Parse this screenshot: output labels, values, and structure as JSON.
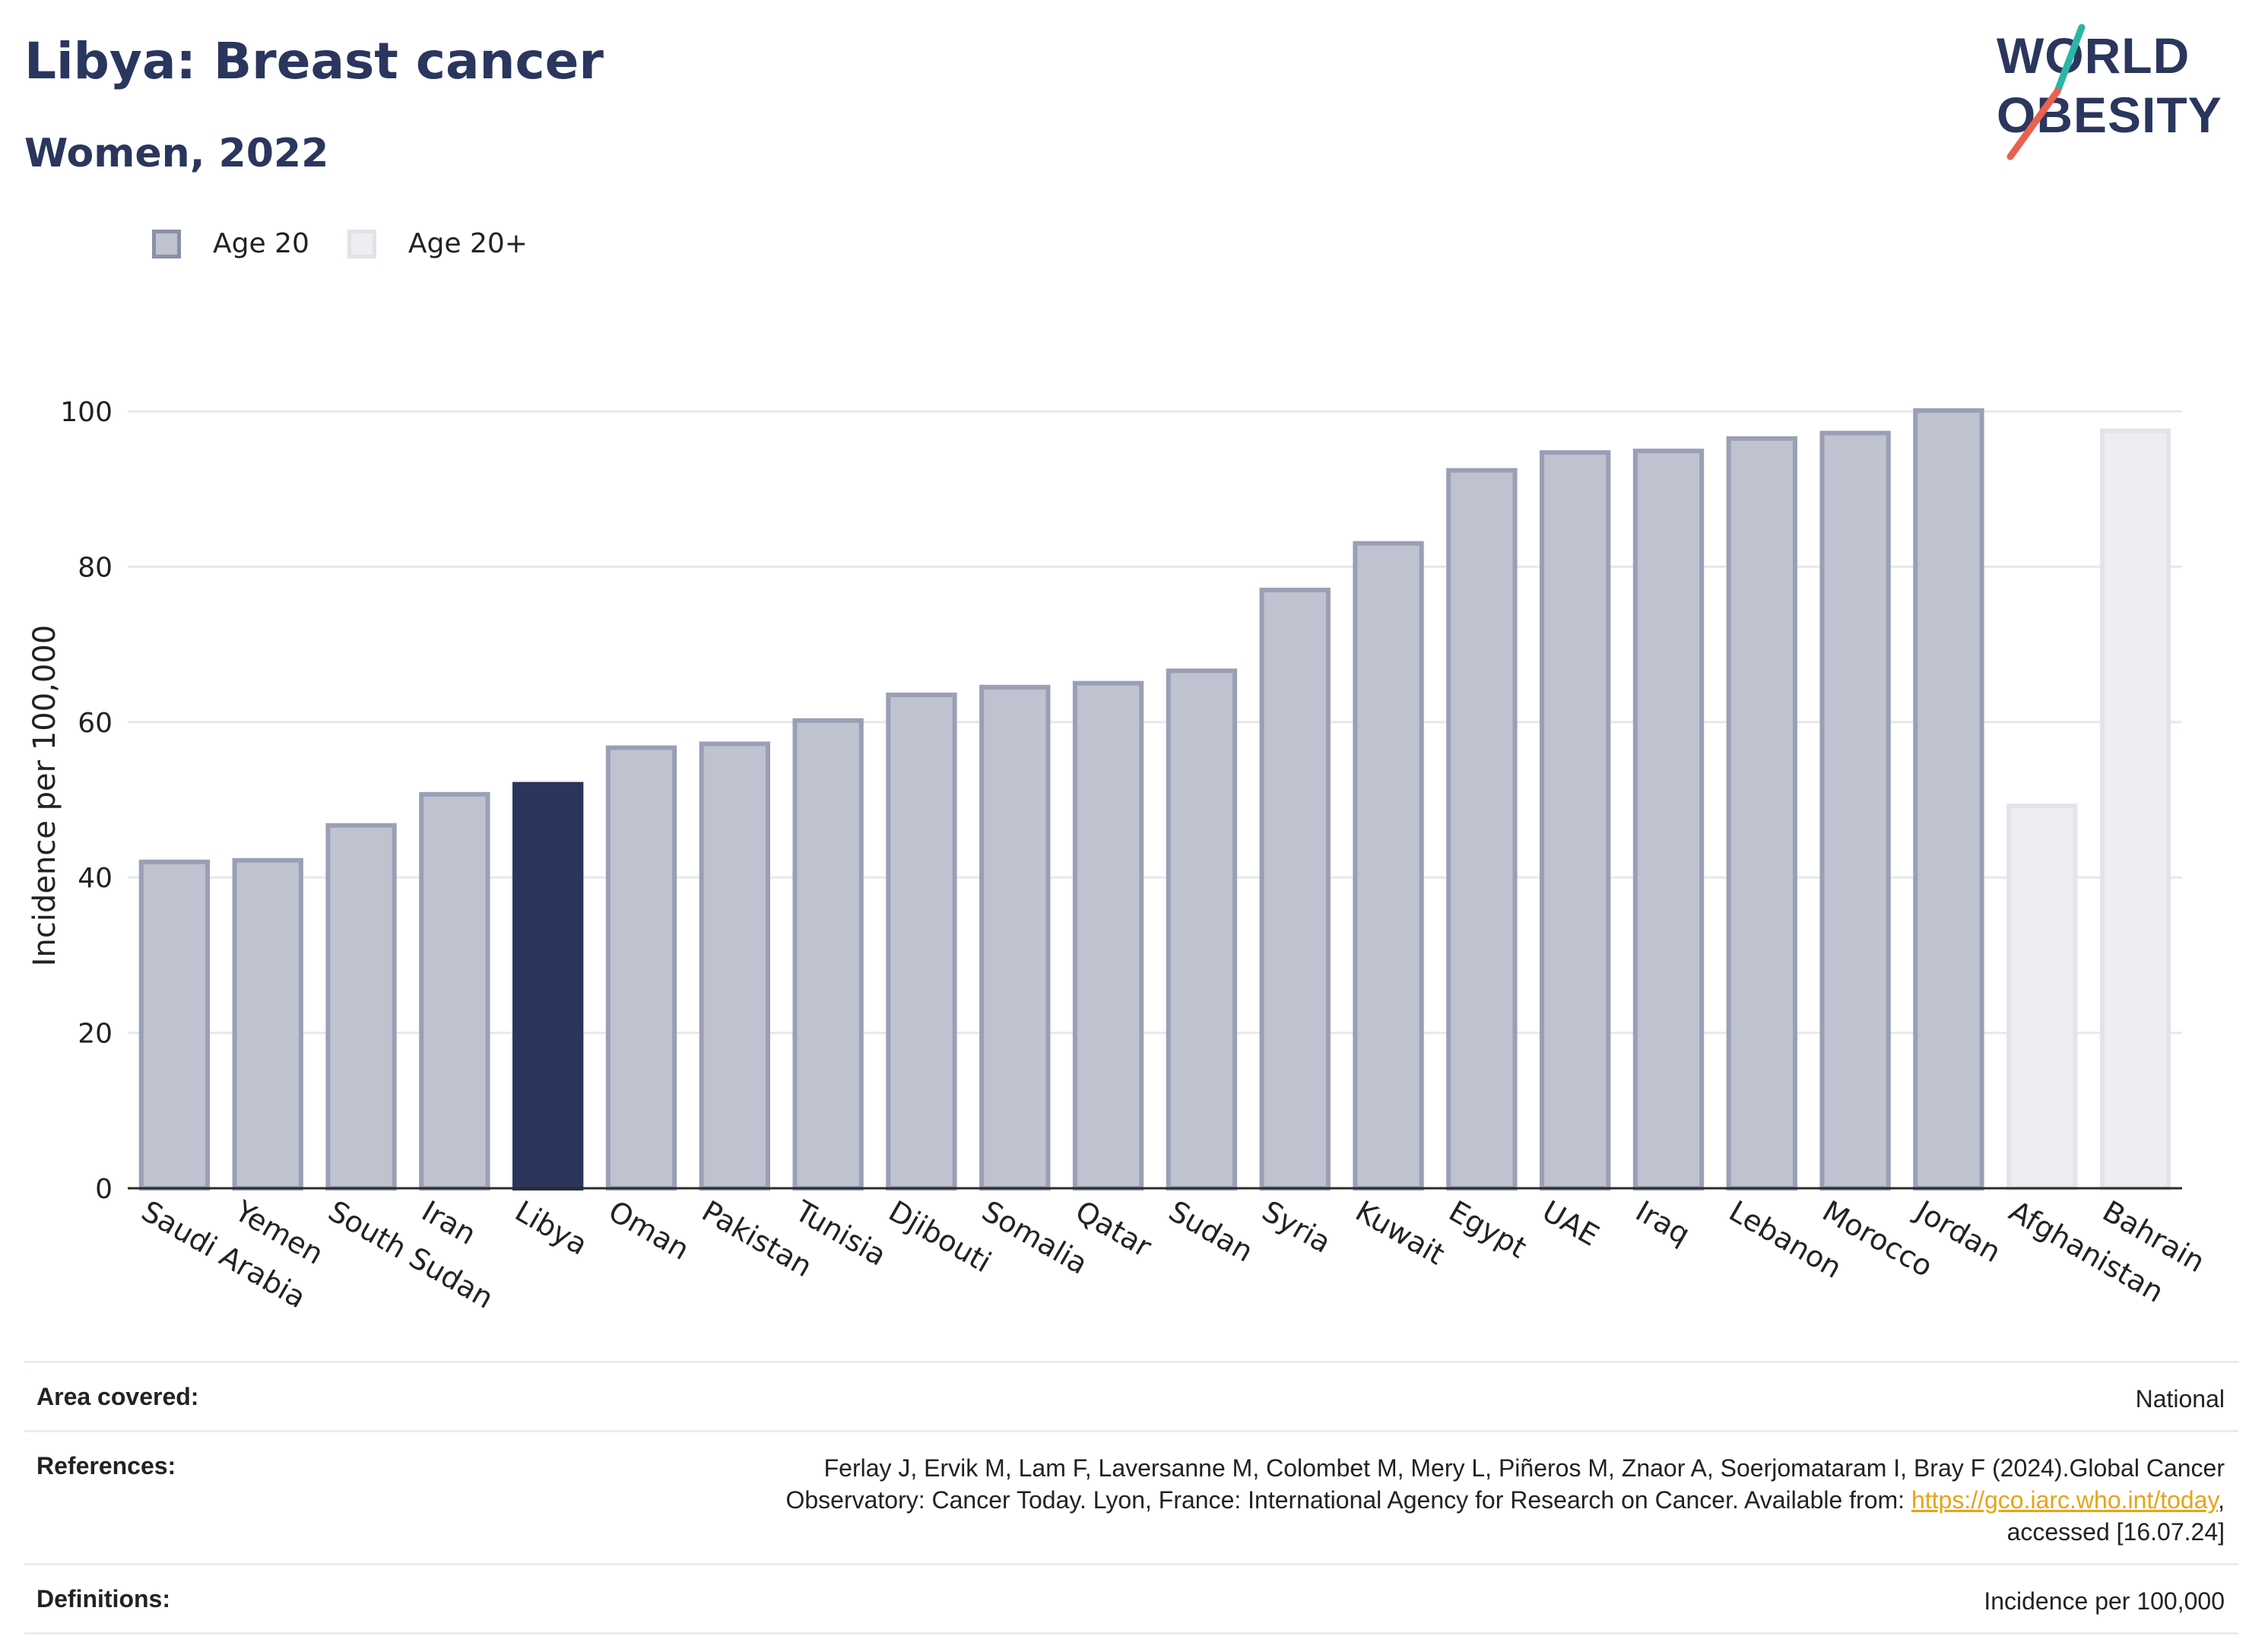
{
  "header": {
    "title": "Libya: Breast cancer",
    "subtitle": "Women, 2022"
  },
  "logo": {
    "line1": "WORLD",
    "line2": "OBESITY",
    "slash_colors": [
      "#2bb5a8",
      "#e8624f"
    ],
    "text_color": "#2b365e"
  },
  "legend": {
    "items": [
      {
        "label": "Age 20",
        "fill": "#bfc2cf",
        "stroke": "#8a90a8"
      },
      {
        "label": "Age 20+",
        "fill": "#eceef2",
        "stroke": "#e0e2e8"
      }
    ]
  },
  "chart_data": {
    "type": "bar",
    "ylabel": "Incidence per 100,000",
    "ylim": [
      0,
      105
    ],
    "yticks": [
      0,
      20,
      40,
      60,
      80,
      100
    ],
    "grid": true,
    "categories": [
      "Saudi Arabia",
      "Yemen",
      "South Sudan",
      "Iran",
      "Libya",
      "Oman",
      "Pakistan",
      "Tunisia",
      "Djibouti",
      "Somalia",
      "Qatar",
      "Sudan",
      "Syria",
      "Kuwait",
      "Egypt",
      "UAE",
      "Iraq",
      "Lebanon",
      "Morocco",
      "Jordan",
      "Afghanistan",
      "Bahrain"
    ],
    "values": [
      42.3,
      42.5,
      47.0,
      51.0,
      52.3,
      57.0,
      57.5,
      60.5,
      63.8,
      64.8,
      65.3,
      66.9,
      77.3,
      83.3,
      92.7,
      95.0,
      95.2,
      96.8,
      97.5,
      100.4,
      49.5,
      97.8
    ],
    "groups": [
      "Age 20",
      "Age 20",
      "Age 20",
      "Age 20",
      "Age 20",
      "Age 20",
      "Age 20",
      "Age 20",
      "Age 20",
      "Age 20",
      "Age 20",
      "Age 20",
      "Age 20",
      "Age 20",
      "Age 20",
      "Age 20",
      "Age 20",
      "Age 20",
      "Age 20",
      "Age 20",
      "Age 20+",
      "Age 20+"
    ],
    "highlight": "Libya",
    "colors": {
      "age20_fill": "#bfc2cf",
      "age20_stroke": "#9a9fb6",
      "age20plus_fill": "#eceef2",
      "age20plus_stroke": "#e2e4ea",
      "highlight_fill": "#2b365e",
      "grid": "#e6e8ec",
      "axis": "#2b2b2b"
    }
  },
  "info": {
    "area_label": "Area covered:",
    "area_value": "National",
    "references_label": "References:",
    "references_line1": "Ferlay J, Ervik M, Lam F, Laversanne M, Colombet M, Mery L, Piñeros M, Znaor A, Soerjomataram I, Bray F (2024).Global Cancer",
    "references_line2_pre": "Observatory: Cancer Today. Lyon, France: International Agency for Research on Cancer. Available from: ",
    "references_link": "https://gco.iarc.who.int/today",
    "references_line2_post": ",",
    "references_line3": "accessed [16.07.24]",
    "definitions_label": "Definitions:",
    "definitions_value": "Incidence per 100,000"
  }
}
